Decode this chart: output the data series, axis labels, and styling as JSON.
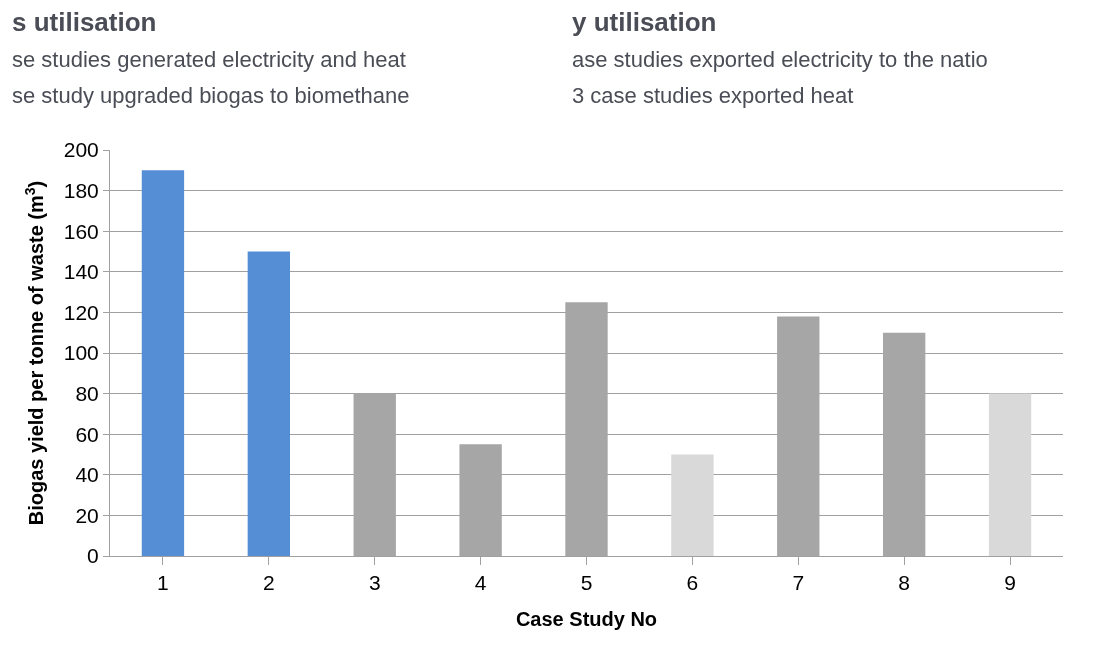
{
  "chart_data": {
    "type": "bar",
    "xlabel": "Case Study No",
    "ylabel": "Biogas yield per tonne of waste (m$^{3}$)",
    "categories": [
      "1",
      "2",
      "3",
      "4",
      "5",
      "6",
      "7",
      "8",
      "9"
    ],
    "values": [
      190,
      150,
      80,
      55,
      125,
      50,
      118,
      110,
      80
    ],
    "colors": [
      "#558ed5",
      "#558ed5",
      "#a6a6a6",
      "#a6a6a6",
      "#a6a6a6",
      "#d9d9d9",
      "#a6a6a6",
      "#a6a6a6",
      "#d9d9d9"
    ],
    "ylim": [
      0,
      200
    ],
    "yticks": [
      0,
      20,
      40,
      60,
      80,
      100,
      120,
      140,
      160,
      180,
      200
    ],
    "grid": "y",
    "annotations": [
      "s utilisation",
      "se studies generated electricity and heat",
      "se study upgraded biogas to biomethane",
      "y utilisation",
      "ase studies exported electricity to the natio",
      "3 case studies exported heat"
    ]
  }
}
